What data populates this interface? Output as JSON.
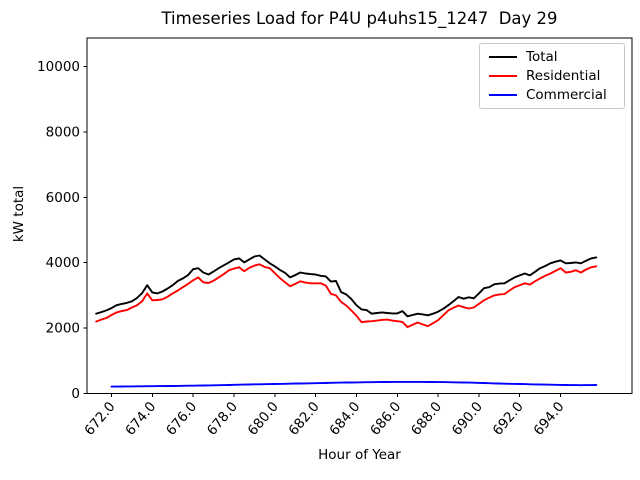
{
  "chart_data": {
    "type": "line",
    "title": "Timeseries Load for P4U p4uhs15_1247  Day 29",
    "xlabel": "Hour of Year",
    "ylabel": "kW total",
    "xlim": [
      670.8,
      697.5
    ],
    "ylim": [
      0,
      10870
    ],
    "x_ticks": [
      672,
      674,
      676,
      678,
      680,
      682,
      684,
      686,
      688,
      690,
      692,
      694
    ],
    "x_tick_labels": [
      "672.0",
      "674.0",
      "676.0",
      "678.0",
      "680.0",
      "682.0",
      "684.0",
      "686.0",
      "688.0",
      "690.0",
      "692.0",
      "694.0"
    ],
    "y_ticks": [
      0,
      2000,
      4000,
      6000,
      8000,
      10000
    ],
    "y_tick_labels": [
      "0",
      "2000",
      "4000",
      "6000",
      "8000",
      "10000"
    ],
    "grid": false,
    "legend_position": "upper right",
    "x_step_hours": 0.25,
    "series": [
      {
        "name": "Total",
        "color": "#000000",
        "x_start": 671.25,
        "x_step": 0.25,
        "values": [
          2440,
          2490,
          2540,
          2610,
          2700,
          2740,
          2770,
          2820,
          2920,
          3070,
          3310,
          3090,
          3060,
          3120,
          3210,
          3310,
          3440,
          3520,
          3620,
          3800,
          3830,
          3700,
          3640,
          3730,
          3830,
          3920,
          4010,
          4100,
          4130,
          4010,
          4100,
          4190,
          4220,
          4100,
          3980,
          3890,
          3780,
          3690,
          3550,
          3620,
          3700,
          3670,
          3650,
          3640,
          3600,
          3580,
          3420,
          3440,
          3100,
          3030,
          2890,
          2700,
          2570,
          2550,
          2440,
          2460,
          2480,
          2460,
          2450,
          2450,
          2520,
          2360,
          2400,
          2440,
          2420,
          2390,
          2440,
          2500,
          2590,
          2700,
          2820,
          2950,
          2900,
          2940,
          2910,
          3060,
          3220,
          3250,
          3340,
          3360,
          3370,
          3460,
          3550,
          3610,
          3670,
          3610,
          3720,
          3830,
          3900,
          3980,
          4030,
          4070,
          3980,
          3990,
          4010,
          3980,
          4060,
          4130,
          4160
        ]
      },
      {
        "name": "Residential",
        "color": "#ff0000",
        "x_start": 671.25,
        "x_step": 0.25,
        "values": [
          2200,
          2260,
          2310,
          2400,
          2480,
          2520,
          2550,
          2630,
          2700,
          2820,
          3060,
          2850,
          2860,
          2880,
          2960,
          3060,
          3150,
          3250,
          3350,
          3460,
          3550,
          3400,
          3380,
          3450,
          3550,
          3650,
          3770,
          3820,
          3860,
          3740,
          3840,
          3910,
          3950,
          3870,
          3830,
          3680,
          3530,
          3400,
          3280,
          3350,
          3430,
          3390,
          3370,
          3370,
          3370,
          3300,
          3050,
          3000,
          2800,
          2690,
          2540,
          2380,
          2180,
          2200,
          2210,
          2230,
          2250,
          2260,
          2230,
          2210,
          2190,
          2030,
          2100,
          2170,
          2110,
          2060,
          2150,
          2240,
          2390,
          2540,
          2620,
          2690,
          2640,
          2600,
          2630,
          2740,
          2850,
          2930,
          3000,
          3030,
          3040,
          3150,
          3250,
          3310,
          3370,
          3330,
          3430,
          3520,
          3600,
          3670,
          3750,
          3830,
          3700,
          3720,
          3770,
          3700,
          3790,
          3860,
          3890
        ]
      },
      {
        "name": "Commercial",
        "color": "#0000ff",
        "x_start": 672.0,
        "x_step": 0.25,
        "values": [
          210,
          212,
          214,
          216,
          218,
          219,
          221,
          222,
          224,
          225,
          227,
          228,
          230,
          232,
          235,
          237,
          240,
          242,
          245,
          247,
          250,
          254,
          257,
          261,
          265,
          269,
          272,
          276,
          280,
          282,
          285,
          287,
          290,
          294,
          297,
          301,
          305,
          307,
          310,
          312,
          315,
          319,
          322,
          326,
          330,
          332,
          335,
          337,
          340,
          342,
          345,
          347,
          350,
          351,
          352,
          354,
          355,
          355,
          356,
          356,
          355,
          354,
          353,
          351,
          350,
          348,
          345,
          343,
          340,
          336,
          333,
          329,
          325,
          320,
          315,
          310,
          305,
          301,
          297,
          294,
          290,
          286,
          282,
          279,
          275,
          272,
          269,
          265,
          262,
          260,
          258,
          257,
          255,
          256,
          258,
          260
        ]
      }
    ]
  }
}
